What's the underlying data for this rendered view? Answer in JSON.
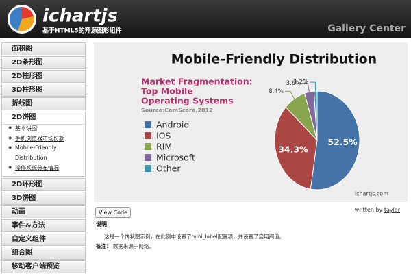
{
  "header": {
    "logo": "ichartjs",
    "tagline": "基于HTML5的开源图形组件",
    "right": "Gallery Center"
  },
  "sidebar": {
    "items": [
      "面积图",
      "2D条形图",
      "2D柱形图",
      "3D柱形图",
      "折线图"
    ],
    "active": {
      "label": "2D饼图",
      "children": [
        "基本饼图",
        "手机浏览器市场份额",
        "Mobile-Friendly",
        "Distribution",
        "操作系统分布情况"
      ]
    },
    "items_after": [
      "2D环形图",
      "3D饼图",
      "动画",
      "事件&方法",
      "自定义组件",
      "组合图",
      "移动客户端预览"
    ]
  },
  "chart_data": {
    "type": "pie",
    "title": "Mobile-Friendly Distribution",
    "subtitle": [
      "Market Fragmentation:",
      "Top Mobile",
      "Operating Systems"
    ],
    "source": "Source:ComScore,2012",
    "footnote": "ichartjs.com",
    "categories": [
      "Android",
      "IOS",
      "RIM",
      "Microsoft",
      "Other"
    ],
    "values": [
      52.5,
      34.3,
      8.4,
      3.6,
      1.2
    ],
    "value_labels": [
      "52.5%",
      "34.3%",
      "8.4%",
      "3.6%",
      "1.2%"
    ],
    "colors": [
      "#4572a7",
      "#aa4643",
      "#89a54e",
      "#80699b",
      "#3d96ae"
    ]
  },
  "footer": {
    "button": "View Code",
    "author_prefix": "written by",
    "author": "taylor",
    "heading": "说明",
    "description": "这是一个饼状图示例，在此例中设置了mini_label配置项，并设置了启用阀值。",
    "note_label": "备注：",
    "note": "数据来源于网络。"
  }
}
